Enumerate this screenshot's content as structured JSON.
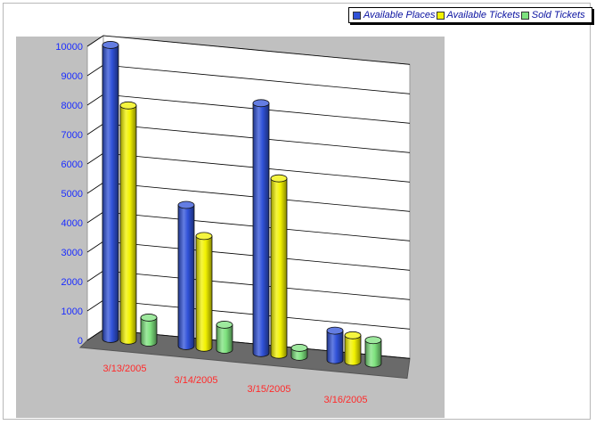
{
  "chart_data": {
    "type": "bar",
    "subtype": "3d-cylinder",
    "categories": [
      "3/13/2005",
      "3/14/2005",
      "3/15/2005",
      "3/16/2005"
    ],
    "series": [
      {
        "name": "Available Places",
        "color": "#3052d8",
        "values": [
          10000,
          4800,
          8500,
          1000
        ]
      },
      {
        "name": "Available Tickets",
        "color": "#f2f200",
        "values": [
          8000,
          3800,
          6000,
          900
        ]
      },
      {
        "name": "Sold Tickets",
        "color": "#7ee27e",
        "values": [
          850,
          850,
          300,
          800
        ]
      }
    ],
    "yticks": [
      "0",
      "1000",
      "2000",
      "3000",
      "4000",
      "5000",
      "6000",
      "7000",
      "8000",
      "9000",
      "10000"
    ],
    "ylim": [
      0,
      10000
    ],
    "title": "",
    "xlabel": "",
    "ylabel": "",
    "grid": true,
    "legend_position": "top-right",
    "tick_color": "#1a2cff",
    "category_color": "#ff2a2a"
  }
}
